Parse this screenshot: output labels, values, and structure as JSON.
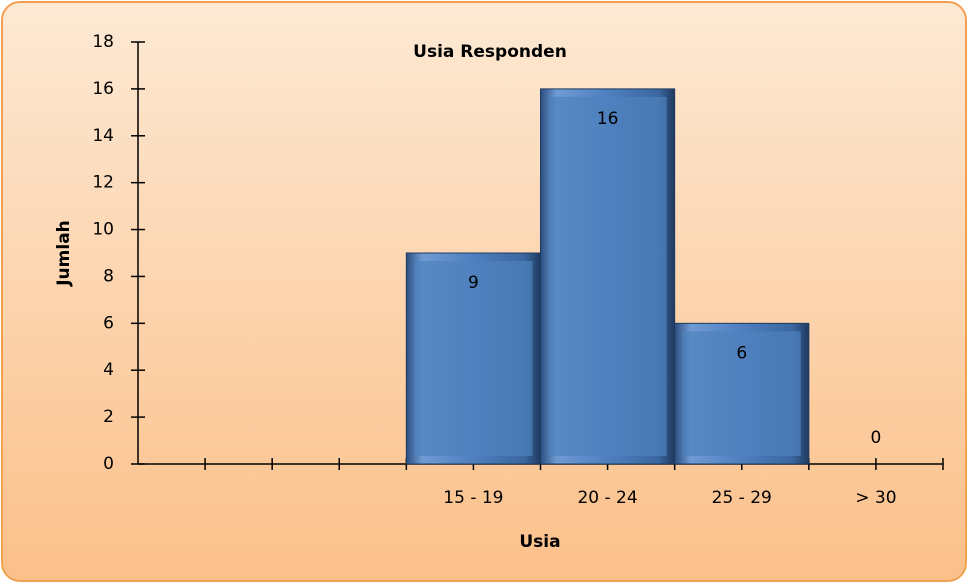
{
  "chart_data": {
    "type": "bar",
    "title": "Usia Responden",
    "x_label": "Usia",
    "y_label": "Jumlah",
    "categories": [
      null,
      null,
      "15 - 19",
      "20 - 24",
      "25 - 29",
      "> 30"
    ],
    "values": [
      null,
      null,
      9,
      16,
      6,
      0
    ],
    "color": "#4f81bd",
    "ylim": [
      0,
      18
    ],
    "yticks": [
      0,
      2,
      4,
      6,
      8,
      10,
      12,
      14,
      16,
      18
    ],
    "grid": false
  }
}
